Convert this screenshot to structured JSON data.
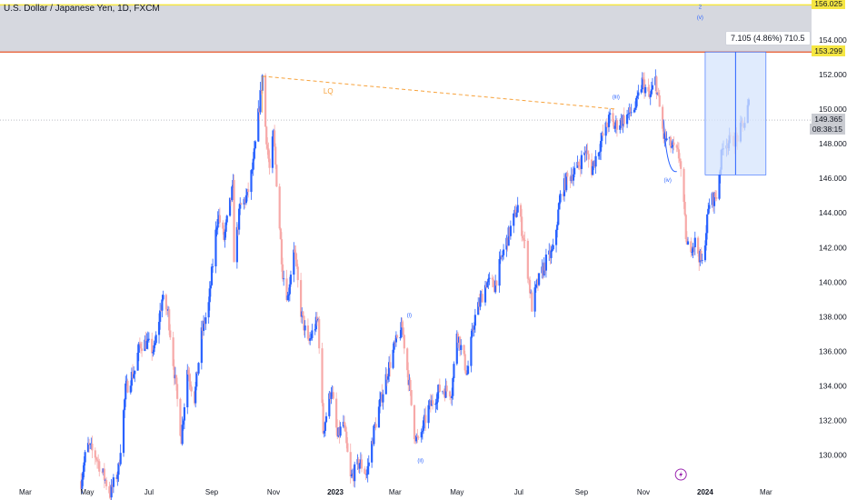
{
  "header": {
    "title": "U.S. Dollar / Japanese Yen, 1D, FXCM"
  },
  "measure": {
    "text": "7.105 (4.86%) 710.5"
  },
  "price_tags": [
    {
      "name": "supply-zone-top-tag",
      "value": "156.025",
      "color": "#f5e642"
    },
    {
      "name": "supply-zone-bottom-tag",
      "value": "153.299",
      "color": "#f5e642"
    },
    {
      "name": "last-price-tag",
      "value": "149.365",
      "color": "#c9cbd1"
    },
    {
      "name": "countdown-tag",
      "value": "08:38:15",
      "color": "#c9cbd1"
    }
  ],
  "annotations": [
    {
      "name": "lq-label",
      "text": "LQ",
      "x": "2022-12-25",
      "y": 150.9,
      "color": "#f7a23b"
    },
    {
      "name": "wave-i-label",
      "text": "(i)",
      "x": "2023-03-15",
      "y": 138.0,
      "color": "#2962ff"
    },
    {
      "name": "wave-ii-label",
      "text": "(ii)",
      "x": "2023-03-26",
      "y": 129.6,
      "color": "#2962ff"
    },
    {
      "name": "wave-iii-label",
      "text": "(iii)",
      "x": "2023-10-05",
      "y": 150.6,
      "color": "#2962ff"
    },
    {
      "name": "wave-iv-label",
      "text": "(iv)",
      "x": "2023-11-25",
      "y": 145.8,
      "color": "#2962ff"
    },
    {
      "name": "wave-v-label",
      "text": "(v)",
      "x": "2023-12-27",
      "y": 155.2,
      "color": "#2962ff"
    },
    {
      "name": "wave-box-label",
      "text": "2",
      "x": "2023-12-27",
      "y": 155.8,
      "color": "#2962ff"
    }
  ],
  "colors": {
    "up": "#2962ff",
    "down": "#f7a9a8",
    "supply_zone": "#d1d4dc",
    "zone_line": "#f5e642",
    "orange_line": "#e8562a",
    "lq": "#f7a23b",
    "measure_fill": "#d6e4fc",
    "grid": "#f0f3fa"
  },
  "chart_data": {
    "type": "candlestick",
    "symbol": "USDJPY",
    "timeframe": "1D",
    "ylim": [
      128.2,
      156.2
    ],
    "xlim": [
      "2022-02-04",
      "2024-04-15"
    ],
    "y_ticks": [
      130.0,
      132.0,
      134.0,
      136.0,
      138.0,
      140.0,
      142.0,
      144.0,
      146.0,
      148.0,
      150.0,
      152.0,
      154.0
    ],
    "y_tick_labels": [
      "130.000",
      "132.000",
      "134.000",
      "136.000",
      "138.000",
      "140.000",
      "142.000",
      "144.000",
      "146.000",
      "148.000",
      "150.000",
      "152.000",
      "154.000"
    ],
    "x_ticks": [
      {
        "label": "Mar",
        "date": "2022-03-01"
      },
      {
        "label": "May",
        "date": "2022-05-01"
      },
      {
        "label": "Jul",
        "date": "2022-07-01"
      },
      {
        "label": "Sep",
        "date": "2022-09-01"
      },
      {
        "label": "Nov",
        "date": "2022-11-01"
      },
      {
        "label": "2023",
        "date": "2023-01-01"
      },
      {
        "label": "Mar",
        "date": "2023-03-01"
      },
      {
        "label": "May",
        "date": "2023-05-01"
      },
      {
        "label": "Jul",
        "date": "2023-07-01"
      },
      {
        "label": "Sep",
        "date": "2023-09-01"
      },
      {
        "label": "Nov",
        "date": "2023-11-01"
      },
      {
        "label": "2024",
        "date": "2024-01-01"
      },
      {
        "label": "Mar",
        "date": "2024-03-01"
      }
    ],
    "close_path": [
      [
        "2022-04-25",
        128.5
      ],
      [
        "2022-05-01",
        130.6
      ],
      [
        "2022-05-10",
        129.9
      ],
      [
        "2022-05-24",
        127.8
      ],
      [
        "2022-06-01",
        129.2
      ],
      [
        "2022-06-08",
        133.8
      ],
      [
        "2022-06-14",
        134.6
      ],
      [
        "2022-06-17",
        134.9
      ],
      [
        "2022-06-22",
        136.4
      ],
      [
        "2022-06-28",
        136.5
      ],
      [
        "2022-07-06",
        136.0
      ],
      [
        "2022-07-14",
        139.0
      ],
      [
        "2022-07-20",
        138.2
      ],
      [
        "2022-07-28",
        133.7
      ],
      [
        "2022-08-02",
        131.0
      ],
      [
        "2022-08-08",
        135.0
      ],
      [
        "2022-08-15",
        133.3
      ],
      [
        "2022-08-22",
        137.0
      ],
      [
        "2022-08-29",
        138.7
      ],
      [
        "2022-09-07",
        144.0
      ],
      [
        "2022-09-13",
        142.5
      ],
      [
        "2022-09-22",
        145.5
      ],
      [
        "2022-09-23",
        141.5
      ],
      [
        "2022-09-29",
        144.3
      ],
      [
        "2022-10-06",
        145.0
      ],
      [
        "2022-10-12",
        146.8
      ],
      [
        "2022-10-21",
        151.9
      ],
      [
        "2022-10-24",
        149.0
      ],
      [
        "2022-10-28",
        146.5
      ],
      [
        "2022-11-01",
        148.5
      ],
      [
        "2022-11-10",
        140.6
      ],
      [
        "2022-11-15",
        139.1
      ],
      [
        "2022-11-21",
        142.1
      ],
      [
        "2022-11-28",
        138.3
      ],
      [
        "2022-12-05",
        136.4
      ],
      [
        "2022-12-12",
        137.5
      ],
      [
        "2022-12-15",
        137.8
      ],
      [
        "2022-12-20",
        131.4
      ],
      [
        "2022-12-28",
        133.9
      ],
      [
        "2023-01-03",
        131.0
      ],
      [
        "2023-01-09",
        131.9
      ],
      [
        "2023-01-16",
        128.6
      ],
      [
        "2023-01-25",
        129.6
      ],
      [
        "2023-02-01",
        128.9
      ],
      [
        "2023-02-08",
        131.4
      ],
      [
        "2023-02-20",
        134.5
      ],
      [
        "2023-02-28",
        136.2
      ],
      [
        "2023-03-08",
        137.4
      ],
      [
        "2023-03-15",
        134.0
      ],
      [
        "2023-03-20",
        131.3
      ],
      [
        "2023-03-24",
        130.7
      ],
      [
        "2023-04-03",
        132.7
      ],
      [
        "2023-04-14",
        133.8
      ],
      [
        "2023-04-26",
        133.7
      ],
      [
        "2023-05-01",
        137.2
      ],
      [
        "2023-05-11",
        134.7
      ],
      [
        "2023-05-18",
        137.8
      ],
      [
        "2023-05-30",
        140.0
      ],
      [
        "2023-06-07",
        139.8
      ],
      [
        "2023-06-16",
        141.8
      ],
      [
        "2023-06-30",
        144.4
      ],
      [
        "2023-07-07",
        142.1
      ],
      [
        "2023-07-14",
        138.6
      ],
      [
        "2023-07-19",
        139.8
      ],
      [
        "2023-07-28",
        141.2
      ],
      [
        "2023-08-04",
        141.8
      ],
      [
        "2023-08-11",
        144.9
      ],
      [
        "2023-08-17",
        145.9
      ],
      [
        "2023-08-28",
        146.6
      ],
      [
        "2023-09-05",
        147.6
      ],
      [
        "2023-09-11",
        146.5
      ],
      [
        "2023-09-21",
        148.3
      ],
      [
        "2023-09-29",
        149.5
      ],
      [
        "2023-10-03",
        149.0
      ],
      [
        "2023-10-16",
        149.6
      ],
      [
        "2023-10-25",
        150.2
      ],
      [
        "2023-10-31",
        151.6
      ],
      [
        "2023-11-07",
        150.6
      ],
      [
        "2023-11-13",
        151.7
      ],
      [
        "2023-11-21",
        148.4
      ],
      [
        "2023-12-07",
        147.2
      ],
      [
        "2023-12-14",
        142.0
      ],
      [
        "2023-12-22",
        142.3
      ],
      [
        "2023-12-29",
        141.0
      ],
      [
        "2024-01-05",
        144.6
      ],
      [
        "2024-01-12",
        145.0
      ],
      [
        "2024-01-19",
        148.1
      ],
      [
        "2024-01-26",
        148.1
      ],
      [
        "2024-02-02",
        148.4
      ],
      [
        "2024-02-09",
        149.3
      ],
      [
        "2024-02-13",
        150.3
      ]
    ],
    "supply_zone": {
      "from": 153.299,
      "to": 156.025
    },
    "liquidity_line": {
      "from": [
        "2022-10-21",
        151.9
      ],
      "to": [
        "2023-10-05",
        150.0
      ]
    },
    "measure_box": {
      "x0": "2024-01-01",
      "x1": "2024-03-01",
      "y0": 146.2,
      "y1": 153.3
    },
    "last_price": 149.365
  }
}
